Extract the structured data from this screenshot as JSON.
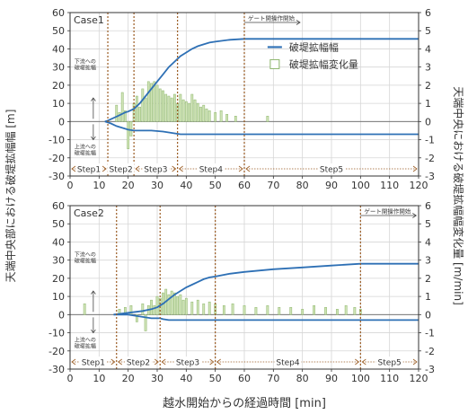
{
  "figure": {
    "ylabel_left": "天端中央部における破堤拡幅幅 [m]",
    "ylabel_right": "天端中央における破堤拡幅幅変化量 [m/min]",
    "xlabel": "越水開始からの経過時間 [min]",
    "legend": {
      "line": "破堤拡幅幅",
      "bar": "破堤拡幅変化量"
    },
    "up_label": [
      "下流への",
      "破堤拡幅"
    ],
    "down_label": [
      "上流への",
      "破堤拡幅"
    ],
    "gate_label": "ゲート開操作開始"
  },
  "chart_data": [
    {
      "type": "bar",
      "title": "Case1",
      "x_ticks": [
        0,
        10,
        20,
        30,
        40,
        50,
        60,
        70,
        80,
        90,
        100,
        110,
        120
      ],
      "xlim": [
        0,
        120
      ],
      "ylim_left": [
        -30,
        60
      ],
      "ylim_right": [
        -3,
        6
      ],
      "left_ticks": [
        -30,
        -20,
        -10,
        0,
        10,
        20,
        30,
        40,
        50,
        60
      ],
      "right_ticks": [
        -3,
        -2,
        -1,
        0,
        1,
        2,
        3,
        4,
        5,
        6
      ],
      "step_bounds": [
        0,
        13,
        22,
        37,
        60,
        120
      ],
      "steps": [
        "Step1",
        "Step2",
        "Step3",
        "Step4",
        "Step5"
      ],
      "gate_time": 60,
      "series": [
        {
          "name": "破堤拡幅幅",
          "kind": "line",
          "x": [
            12,
            13,
            15,
            17,
            19,
            20,
            22,
            24,
            26,
            28,
            30,
            32,
            34,
            36,
            38,
            40,
            42,
            44,
            46,
            48,
            50,
            55,
            60,
            70,
            80,
            90,
            100,
            110,
            120
          ],
          "y": [
            0,
            0.5,
            2,
            3.5,
            5,
            5.5,
            7,
            10,
            14,
            18,
            22,
            26,
            30,
            33,
            36,
            38,
            40,
            41.5,
            42.5,
            43.5,
            44,
            45,
            45.5,
            45.5,
            45.5,
            45.5,
            45.5,
            45.5,
            45.5
          ]
        },
        {
          "name": "上流への破堤拡幅",
          "kind": "line",
          "x": [
            12,
            14,
            16,
            18,
            20,
            22,
            24,
            28,
            32,
            36,
            38,
            40,
            50,
            60,
            80,
            100,
            120
          ],
          "y": [
            0,
            -1,
            -2.5,
            -3.5,
            -4.5,
            -5,
            -5,
            -5,
            -5.5,
            -6.5,
            -7,
            -7,
            -7,
            -7,
            -7,
            -7,
            -7
          ]
        },
        {
          "name": "破堤拡幅変化量",
          "kind": "bar",
          "x": [
            16,
            17,
            18,
            19,
            20,
            21,
            22,
            23,
            24,
            25,
            26,
            27,
            28,
            29,
            30,
            31,
            32,
            33,
            34,
            35,
            36,
            37,
            38,
            39,
            40,
            41,
            42,
            43,
            44,
            45,
            46,
            47,
            48,
            50,
            52,
            54,
            57,
            68
          ],
          "y": [
            0.9,
            0.5,
            1.6,
            0.6,
            -1.5,
            -0.8,
            1.0,
            1.4,
            0.8,
            1.8,
            1.3,
            2.2,
            2.1,
            2.2,
            2.0,
            1.8,
            1.7,
            1.5,
            1.4,
            1.3,
            1.5,
            1.0,
            1.5,
            1.2,
            1.1,
            1.0,
            1.5,
            1.2,
            1.0,
            0.8,
            0.9,
            0.7,
            0.6,
            0.5,
            0.6,
            0.4,
            0.3,
            0.3
          ]
        }
      ]
    },
    {
      "type": "bar",
      "title": "Case2",
      "x_ticks": [
        0,
        10,
        20,
        30,
        40,
        50,
        60,
        70,
        80,
        90,
        100,
        110,
        120
      ],
      "xlim": [
        0,
        120
      ],
      "ylim_left": [
        -30,
        60
      ],
      "ylim_right": [
        -3,
        6
      ],
      "left_ticks": [
        -30,
        -20,
        -10,
        0,
        10,
        20,
        30,
        40,
        50,
        60
      ],
      "right_ticks": [
        -3,
        -2,
        -1,
        0,
        1,
        2,
        3,
        4,
        5,
        6
      ],
      "step_bounds": [
        0,
        16,
        31,
        50,
        100,
        120
      ],
      "steps": [
        "Step1",
        "Step2",
        "Step3",
        "Step4",
        "Step5"
      ],
      "gate_time": 100,
      "series": [
        {
          "name": "破堤拡幅幅",
          "kind": "line",
          "x": [
            15,
            20,
            25,
            28,
            30,
            32,
            34,
            36,
            38,
            40,
            42,
            44,
            46,
            48,
            50,
            55,
            60,
            70,
            80,
            90,
            100,
            110,
            120
          ],
          "y": [
            0,
            1,
            2,
            3,
            4,
            6,
            8.5,
            11,
            13,
            15,
            16.5,
            18,
            19.5,
            20.5,
            21,
            22.5,
            23.5,
            25,
            26,
            27,
            28,
            28,
            28
          ]
        },
        {
          "name": "上流への破堤拡幅",
          "kind": "line",
          "x": [
            15,
            20,
            24,
            28,
            31,
            32,
            34,
            40,
            60,
            80,
            100,
            120
          ],
          "y": [
            0,
            0,
            -1,
            -2,
            -2,
            -2.5,
            -3,
            -3,
            -3,
            -3,
            -3,
            -3
          ]
        },
        {
          "name": "破堤拡幅変化量",
          "kind": "bar",
          "x": [
            5,
            17,
            19,
            21,
            23,
            25,
            26,
            27,
            28,
            29,
            30,
            31,
            32,
            33,
            34,
            35,
            36,
            37,
            38,
            39,
            40,
            42,
            44,
            46,
            48,
            50,
            53,
            56,
            60,
            64,
            68,
            72,
            76,
            80,
            84,
            88,
            92,
            95,
            98,
            100
          ],
          "y": [
            0.6,
            0.3,
            0.4,
            0.5,
            -0.4,
            0.6,
            -0.9,
            0.5,
            0.8,
            0.5,
            1.0,
            0.9,
            1.2,
            1.4,
            1.1,
            1.3,
            1.2,
            1.0,
            1.1,
            0.8,
            0.9,
            0.7,
            0.8,
            0.6,
            0.7,
            0.6,
            0.5,
            0.6,
            0.5,
            0.4,
            0.5,
            0.4,
            0.4,
            0.3,
            0.5,
            0.4,
            0.3,
            0.5,
            0.4,
            0.3
          ]
        }
      ]
    }
  ]
}
